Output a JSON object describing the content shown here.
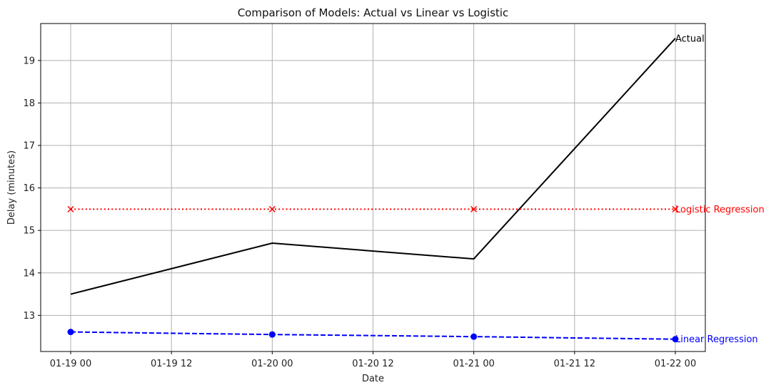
{
  "chart_data": {
    "type": "line",
    "title": "Comparison of Models: Actual vs Linear vs Logistic",
    "xlabel": "Date",
    "ylabel": "Delay (minutes)",
    "x": [
      "01-19 00",
      "01-20 00",
      "01-21 00",
      "01-22 00"
    ],
    "x_ticks": [
      "01-19 00",
      "01-19 12",
      "01-20 00",
      "01-20 12",
      "01-21 00",
      "01-21 12",
      "01-22 00"
    ],
    "y_ticks": [
      13,
      14,
      15,
      16,
      17,
      18,
      19
    ],
    "ylim": [
      12.15,
      19.87
    ],
    "grid": true,
    "series": [
      {
        "name": "Actual",
        "values": [
          13.5,
          14.7,
          14.33,
          19.52
        ],
        "color": "#000000",
        "style": "solid",
        "marker": "none"
      },
      {
        "name": "Logistic Regression",
        "values": [
          15.5,
          15.5,
          15.5,
          15.5
        ],
        "color": "#ff0000",
        "style": "dotted",
        "marker": "x"
      },
      {
        "name": "Linear Regression",
        "values": [
          12.61,
          12.55,
          12.5,
          12.44
        ],
        "color": "#0000ff",
        "style": "dashed",
        "marker": "circle"
      }
    ]
  }
}
